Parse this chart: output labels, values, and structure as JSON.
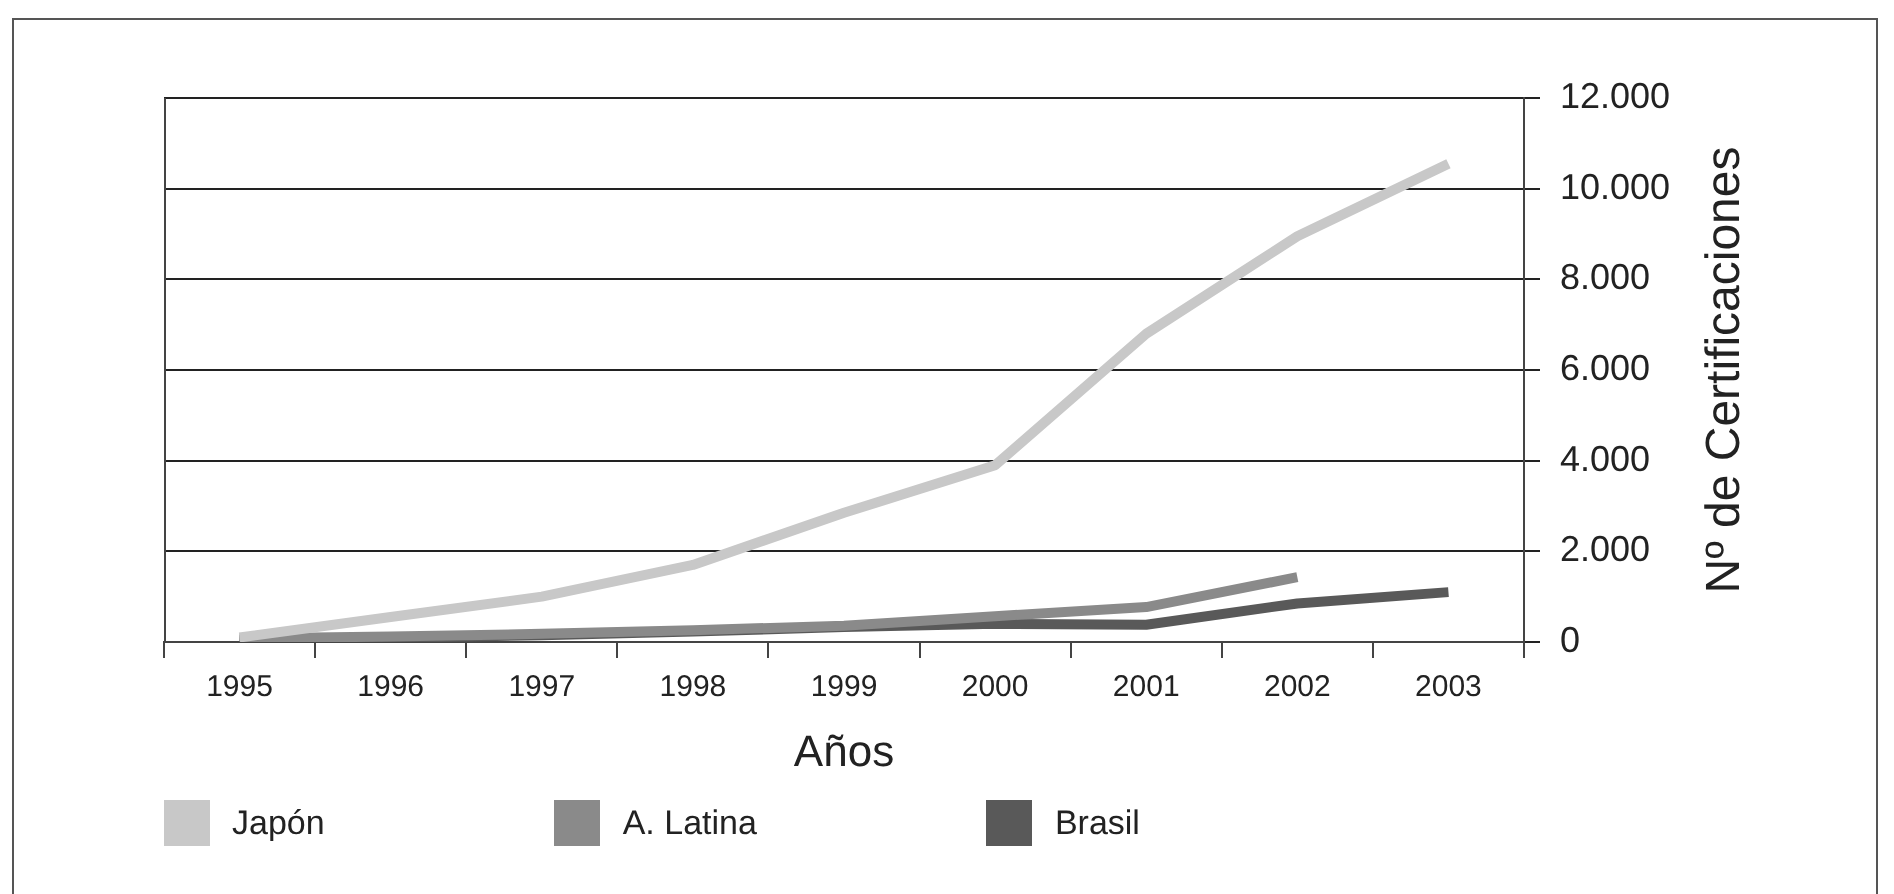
{
  "chart_data": {
    "type": "line",
    "xlabel": "Años",
    "ylabel": "Nº de Certificaciones",
    "categories": [
      "1995",
      "1996",
      "1997",
      "1998",
      "1999",
      "2000",
      "2001",
      "2002",
      "2003"
    ],
    "series": [
      {
        "name": "Japón",
        "color": "#c8c8c8",
        "values": [
          100,
          550,
          1000,
          1700,
          2850,
          3900,
          6800,
          8950,
          10550
        ]
      },
      {
        "name": "A. Latina",
        "color": "#8a8a8a",
        "values": [
          80,
          120,
          180,
          260,
          360,
          570,
          770,
          1430,
          null
        ]
      },
      {
        "name": "Brasil",
        "color": "#595959",
        "values": [
          50,
          90,
          150,
          230,
          330,
          400,
          380,
          850,
          1100
        ]
      }
    ],
    "ylim": [
      0,
      12000
    ],
    "yticks": [
      0,
      {
        "value": 2000,
        "label": "2.000"
      },
      {
        "value": 4000,
        "label": "4.000"
      },
      {
        "value": 6000,
        "label": "6.000"
      },
      {
        "value": 8000,
        "label": "8.000"
      },
      {
        "value": 10000,
        "label": "10.000"
      },
      {
        "value": 12000,
        "label": "12.000"
      }
    ],
    "grid": "y",
    "legend": "bottom",
    "line_style": "solid"
  }
}
